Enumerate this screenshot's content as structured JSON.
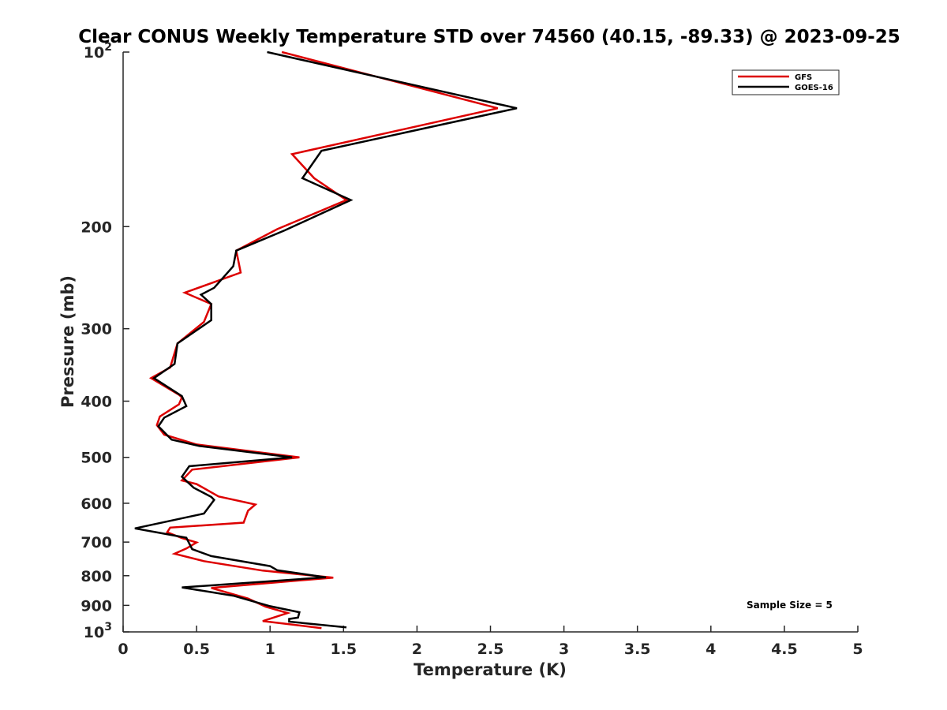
{
  "chart_data": {
    "type": "line",
    "title": "Clear CONUS Weekly Temperature STD over 74560 (40.15, -89.33) @ 2023-09-25",
    "xlabel": "Temperature (K)",
    "ylabel": "Pressure (mb)",
    "xlim": [
      0,
      5
    ],
    "ylim": [
      100,
      1000
    ],
    "y_scale": "log",
    "y_reversed": true,
    "grid": false,
    "x_ticks": [
      "0",
      "0.5",
      "1",
      "1.5",
      "2",
      "2.5",
      "3",
      "3.5",
      "4",
      "4.5",
      "5"
    ],
    "y_ticks": [
      {
        "value": 100,
        "base": "10",
        "exp": "2"
      },
      {
        "value": 200,
        "label": "200"
      },
      {
        "value": 300,
        "label": "300"
      },
      {
        "value": 400,
        "label": "400"
      },
      {
        "value": 500,
        "label": "500"
      },
      {
        "value": 600,
        "label": "600"
      },
      {
        "value": 700,
        "label": "700"
      },
      {
        "value": 800,
        "label": "800"
      },
      {
        "value": 900,
        "label": "900"
      },
      {
        "value": 1000,
        "base": "10",
        "exp": "3"
      }
    ],
    "legend": {
      "placement": "top-right"
    },
    "annotation": "Sample Size = 5",
    "series": [
      {
        "name": "GFS",
        "color": "#dd0000",
        "points": [
          [
            1.08,
            100
          ],
          [
            2.55,
            125
          ],
          [
            1.15,
            150
          ],
          [
            1.3,
            165
          ],
          [
            1.52,
            180
          ],
          [
            1.05,
            202
          ],
          [
            0.77,
            220
          ],
          [
            0.8,
            240
          ],
          [
            0.42,
            260
          ],
          [
            0.6,
            272
          ],
          [
            0.55,
            292
          ],
          [
            0.37,
            318
          ],
          [
            0.32,
            350
          ],
          [
            0.19,
            365
          ],
          [
            0.38,
            390
          ],
          [
            0.4,
            394
          ],
          [
            0.38,
            405
          ],
          [
            0.25,
            425
          ],
          [
            0.23,
            440
          ],
          [
            0.28,
            457
          ],
          [
            0.5,
            475
          ],
          [
            1.2,
            500
          ],
          [
            0.47,
            525
          ],
          [
            0.4,
            548
          ],
          [
            0.5,
            556
          ],
          [
            0.65,
            584
          ],
          [
            0.9,
            603
          ],
          [
            0.85,
            618
          ],
          [
            0.82,
            648
          ],
          [
            0.32,
            661
          ],
          [
            0.3,
            673
          ],
          [
            0.4,
            689
          ],
          [
            0.5,
            701
          ],
          [
            0.43,
            718
          ],
          [
            0.35,
            733
          ],
          [
            0.55,
            755
          ],
          [
            0.95,
            784
          ],
          [
            1.43,
            806
          ],
          [
            1.2,
            815
          ],
          [
            0.6,
            840
          ],
          [
            0.85,
            876
          ],
          [
            0.97,
            905
          ],
          [
            1.12,
            928
          ],
          [
            0.95,
            958
          ],
          [
            1.35,
            985
          ]
        ]
      },
      {
        "name": "GOES-16",
        "color": "#000000",
        "points": [
          [
            0.98,
            100
          ],
          [
            2.68,
            125
          ],
          [
            1.35,
            148
          ],
          [
            1.22,
            165
          ],
          [
            1.55,
            180
          ],
          [
            1.1,
            203
          ],
          [
            0.77,
            220
          ],
          [
            0.75,
            234
          ],
          [
            0.62,
            255
          ],
          [
            0.53,
            262
          ],
          [
            0.6,
            272
          ],
          [
            0.6,
            290
          ],
          [
            0.37,
            318
          ],
          [
            0.35,
            345
          ],
          [
            0.21,
            365
          ],
          [
            0.4,
            392
          ],
          [
            0.43,
            408
          ],
          [
            0.28,
            427
          ],
          [
            0.24,
            442
          ],
          [
            0.33,
            466
          ],
          [
            0.52,
            478
          ],
          [
            1.15,
            500
          ],
          [
            0.45,
            518
          ],
          [
            0.4,
            540
          ],
          [
            0.48,
            564
          ],
          [
            0.6,
            585
          ],
          [
            0.62,
            592
          ],
          [
            0.55,
            625
          ],
          [
            0.08,
            663
          ],
          [
            0.25,
            675
          ],
          [
            0.43,
            688
          ],
          [
            0.47,
            720
          ],
          [
            0.6,
            740
          ],
          [
            1.0,
            770
          ],
          [
            1.05,
            783
          ],
          [
            1.38,
            805
          ],
          [
            0.4,
            838
          ],
          [
            0.75,
            866
          ],
          [
            1.0,
            903
          ],
          [
            1.2,
            925
          ],
          [
            1.19,
            945
          ],
          [
            1.13,
            950
          ],
          [
            1.13,
            960
          ],
          [
            1.52,
            982
          ]
        ]
      }
    ]
  }
}
